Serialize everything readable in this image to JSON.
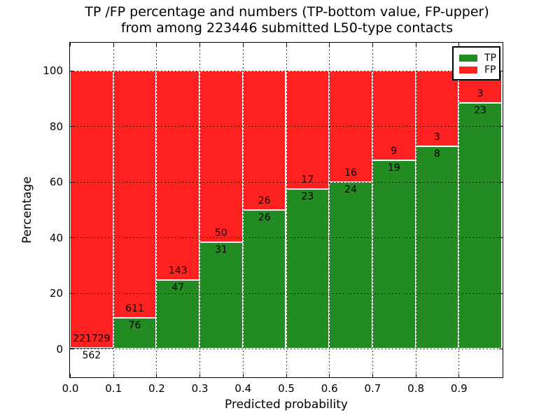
{
  "title": {
    "line1": "TP /FP percentage and numbers (TP-bottom value, FP-upper)",
    "line2": "from among 223446 submitted L50-type contacts"
  },
  "legend": {
    "items": [
      {
        "label": "TP",
        "color": "#228B22"
      },
      {
        "label": "FP",
        "color": "#FF2020"
      }
    ],
    "position": "upper right"
  },
  "chart_data": {
    "type": "bar",
    "stacked": true,
    "title": "TP /FP percentage and numbers (TP-bottom value, FP-upper) from among 223446 submitted L50-type contacts",
    "xlabel": "Predicted probability",
    "ylabel": "Percentage",
    "xlim": [
      0.0,
      1.0
    ],
    "ylim": [
      -10,
      110
    ],
    "grid": "dotted black, horizontal at yticks and vertical at xticks",
    "bar_width": 0.1,
    "bar_edge_color": "#ffffff",
    "categories": [
      "0.0-0.1",
      "0.1-0.2",
      "0.2-0.3",
      "0.3-0.4",
      "0.4-0.5",
      "0.5-0.6",
      "0.6-0.7",
      "0.7-0.8",
      "0.8-0.9",
      "0.9-1.0"
    ],
    "bin_starts": [
      0.0,
      0.1,
      0.2,
      0.3,
      0.4,
      0.5,
      0.6,
      0.7,
      0.8,
      0.9
    ],
    "xtick_labels": [
      "0.0",
      "0.1",
      "0.2",
      "0.3",
      "0.4",
      "0.5",
      "0.6",
      "0.7",
      "0.8",
      "0.9"
    ],
    "ytick_values": [
      0,
      20,
      40,
      60,
      80,
      100
    ],
    "series": [
      {
        "name": "TP",
        "color": "#228B22",
        "counts": [
          562,
          76,
          47,
          31,
          26,
          23,
          24,
          19,
          8,
          23
        ],
        "pct": [
          0.25,
          11.06,
          24.74,
          38.27,
          50.0,
          57.5,
          60.0,
          67.86,
          72.73,
          88.46
        ]
      },
      {
        "name": "FP",
        "color": "#FF2020",
        "counts": [
          221729,
          611,
          143,
          50,
          26,
          17,
          16,
          9,
          3,
          3
        ],
        "pct": [
          99.75,
          88.94,
          75.26,
          61.73,
          50.0,
          42.5,
          40.0,
          32.14,
          27.27,
          11.54
        ]
      }
    ]
  }
}
